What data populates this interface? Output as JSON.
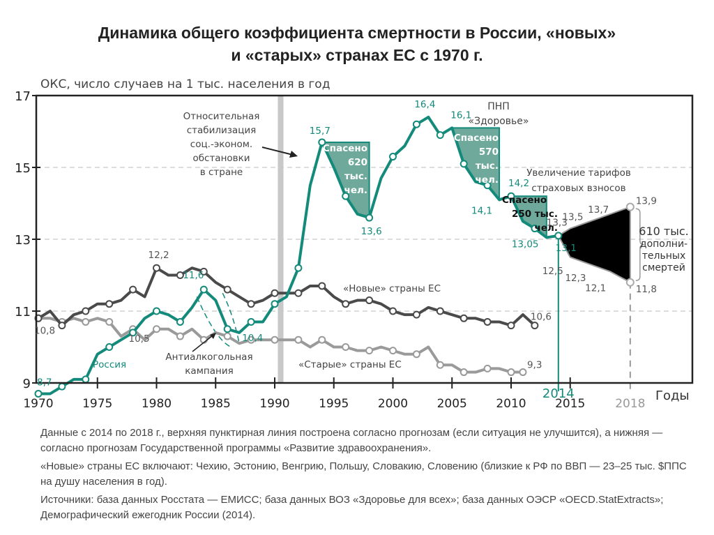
{
  "title": {
    "line1": "Динамика общего коэффициента смертности в России, «новых»",
    "line2": "и «старых» странах ЕС с 1970 г."
  },
  "colors": {
    "russia": "#138a7a",
    "new_eu": "#4a4a4a",
    "old_eu": "#9a9a9a",
    "saved_fill": "#6fa99b",
    "forecast_fill": "#000000"
  },
  "chart_data": {
    "type": "line",
    "ylabel": "ОКС, число случаев на 1 тыс. населения в год",
    "xlabel": "Годы",
    "ylim": [
      9,
      17
    ],
    "xlim": [
      1970,
      2018
    ],
    "yticks": [
      "17",
      "15",
      "13",
      "11",
      "9"
    ],
    "ytick_values": [
      17,
      15,
      13,
      11,
      9
    ],
    "xticks": [
      "1970",
      "1975",
      "1980",
      "1985",
      "1990",
      "1995",
      "2000",
      "2005",
      "2010",
      "2015",
      "2018"
    ],
    "xtick_values": [
      1970,
      1975,
      1980,
      1985,
      1990,
      1995,
      2000,
      2005,
      2010,
      2015,
      2018
    ],
    "grid": "dashed horizontal at 11, 13, 15",
    "marker_2014": "2014",
    "series": [
      {
        "name": "Россия",
        "x": [
          1970,
          1971,
          1972,
          1973,
          1974,
          1975,
          1976,
          1977,
          1978,
          1979,
          1980,
          1981,
          1982,
          1983,
          1984,
          1985,
          1986,
          1987,
          1988,
          1989,
          1990,
          1991,
          1992,
          1993,
          1994,
          1995,
          1996,
          1997,
          1998,
          1999,
          2000,
          2001,
          2002,
          2003,
          2004,
          2005,
          2006,
          2007,
          2008,
          2009,
          2010,
          2011,
          2012,
          2013,
          2014
        ],
        "values": [
          8.7,
          8.7,
          8.9,
          9.1,
          9.1,
          9.8,
          10.0,
          10.2,
          10.4,
          10.8,
          11.0,
          10.9,
          10.7,
          11.1,
          11.6,
          11.3,
          10.5,
          10.4,
          10.7,
          10.7,
          11.2,
          11.4,
          12.2,
          14.5,
          15.7,
          15.0,
          14.2,
          13.7,
          13.6,
          14.7,
          15.3,
          15.6,
          16.2,
          16.4,
          15.9,
          16.1,
          15.1,
          14.6,
          14.5,
          14.1,
          14.2,
          13.5,
          13.3,
          13.05,
          13.1
        ]
      },
      {
        "name": "«Новые» страны ЕС",
        "x": [
          1970,
          1971,
          1972,
          1973,
          1974,
          1975,
          1976,
          1977,
          1978,
          1979,
          1980,
          1981,
          1982,
          1983,
          1984,
          1985,
          1986,
          1987,
          1988,
          1989,
          1990,
          1991,
          1992,
          1993,
          1994,
          1995,
          1996,
          1997,
          1998,
          1999,
          2000,
          2001,
          2002,
          2003,
          2004,
          2005,
          2006,
          2007,
          2008,
          2009,
          2010,
          2011,
          2012
        ],
        "values": [
          10.8,
          11.0,
          10.6,
          10.9,
          11.0,
          11.2,
          11.2,
          11.3,
          11.6,
          11.4,
          12.2,
          12.0,
          12.0,
          12.2,
          12.1,
          11.8,
          11.6,
          11.4,
          11.2,
          11.3,
          11.5,
          11.5,
          11.5,
          11.7,
          11.7,
          11.4,
          11.2,
          11.3,
          11.3,
          11.2,
          11.0,
          10.9,
          10.9,
          11.1,
          11.0,
          10.9,
          10.8,
          10.8,
          10.7,
          10.7,
          10.6,
          10.9,
          10.6
        ]
      },
      {
        "name": "«Старые» страны ЕС",
        "x": [
          1970,
          1971,
          1972,
          1973,
          1974,
          1975,
          1976,
          1977,
          1978,
          1979,
          1980,
          1981,
          1982,
          1983,
          1984,
          1985,
          1986,
          1987,
          1988,
          1989,
          1990,
          1991,
          1992,
          1993,
          1994,
          1995,
          1996,
          1997,
          1998,
          1999,
          2000,
          2001,
          2002,
          2003,
          2004,
          2005,
          2006,
          2007,
          2008,
          2009,
          2010,
          2011
        ],
        "values": [
          10.8,
          10.8,
          10.7,
          10.8,
          10.7,
          10.8,
          10.7,
          10.3,
          10.5,
          10.2,
          10.5,
          10.5,
          10.3,
          10.5,
          10.2,
          10.4,
          10.3,
          10.1,
          10.2,
          10.2,
          10.2,
          10.2,
          10.2,
          10.0,
          10.2,
          10.0,
          10.0,
          9.9,
          9.9,
          10.0,
          9.9,
          9.8,
          9.8,
          10.0,
          9.5,
          9.5,
          9.3,
          9.3,
          9.4,
          9.4,
          9.3,
          9.3
        ]
      },
      {
        "name": "Прогноз (верхний)",
        "x": [
          2014,
          2015,
          2016,
          2017,
          2018
        ],
        "values": [
          13.1,
          13.3,
          13.5,
          13.7,
          13.9
        ]
      },
      {
        "name": "Прогноз (нижний)",
        "x": [
          2014,
          2015,
          2016,
          2017,
          2018
        ],
        "values": [
          13.1,
          12.5,
          12.3,
          12.1,
          11.8
        ]
      }
    ],
    "point_labels": [
      {
        "text": "8,7",
        "series": "russia",
        "x": 1970,
        "y": 8.7
      },
      {
        "text": "11,6",
        "series": "russia",
        "x": 1984,
        "y": 11.6
      },
      {
        "text": "10,4",
        "series": "russia",
        "x": 1987,
        "y": 10.4
      },
      {
        "text": "15,7",
        "series": "russia",
        "x": 1994,
        "y": 15.7
      },
      {
        "text": "13,6",
        "series": "russia",
        "x": 1998,
        "y": 13.6
      },
      {
        "text": "16,4",
        "series": "russia",
        "x": 2003,
        "y": 16.4
      },
      {
        "text": "16,1",
        "series": "russia",
        "x": 2005,
        "y": 16.1
      },
      {
        "text": "14,1",
        "series": "russia",
        "x": 2009,
        "y": 14.1
      },
      {
        "text": "14,2",
        "series": "russia",
        "x": 2010,
        "y": 14.2
      },
      {
        "text": "13,05",
        "series": "russia",
        "x": 2013,
        "y": 13.05
      },
      {
        "text": "13,1",
        "series": "russia",
        "x": 2014,
        "y": 13.1
      },
      {
        "text": "10,8",
        "series": "grey",
        "x": 1970,
        "y": 10.8
      },
      {
        "text": "12,2",
        "series": "grey",
        "x": 1980,
        "y": 12.2
      },
      {
        "text": "10,5",
        "series": "grey",
        "x": 1980,
        "y": 10.5
      },
      {
        "text": "10,6",
        "series": "grey",
        "x": 2012,
        "y": 10.6
      },
      {
        "text": "9,3",
        "series": "grey",
        "x": 2011,
        "y": 9.3
      },
      {
        "text": "13,3",
        "series": "grey",
        "x": 2015,
        "y": 13.3
      },
      {
        "text": "13,5",
        "series": "grey",
        "x": 2016,
        "y": 13.5
      },
      {
        "text": "13,7",
        "series": "grey",
        "x": 2017,
        "y": 13.7
      },
      {
        "text": "13,9",
        "series": "grey",
        "x": 2018,
        "y": 13.9
      },
      {
        "text": "12,5",
        "series": "grey",
        "x": 2015,
        "y": 12.5
      },
      {
        "text": "12,3",
        "series": "grey",
        "x": 2016,
        "y": 12.3
      },
      {
        "text": "12,1",
        "series": "grey",
        "x": 2017,
        "y": 12.1
      },
      {
        "text": "11,8",
        "series": "grey",
        "x": 2018,
        "y": 11.8
      }
    ],
    "annotations": {
      "stabilization": [
        "Относительная",
        "стабилизация",
        "соц.-эконом.",
        "обстановки",
        "в стране"
      ],
      "pnp": [
        "ПНП",
        "«Здоровье»"
      ],
      "tariffs": [
        "Увеличение тарифов",
        "страховых взносов"
      ],
      "new_eu_label": "«Новые» страны ЕС",
      "old_eu_label": "«Старые» страны ЕС",
      "russia_label": "Россия",
      "antialcohol": [
        "Антиалкогольная",
        "кампания"
      ],
      "saved1": [
        "Спасено",
        "620",
        "тыс.",
        "чел."
      ],
      "saved2": [
        "Спасено",
        "570",
        "тыс.",
        "чел."
      ],
      "saved3": [
        "Спасено",
        "250 тыс.",
        "чел."
      ],
      "extra_deaths": [
        "610 тыс.",
        "дополни-",
        "тельных",
        "смертей"
      ]
    }
  },
  "notes": [
    "Данные с 2014 по 2018 г., верхняя пунктирная линия построена согласно прогнозам (если ситуация не улучшится), а нижняя — согласно прогнозам Государственной программы «Развитие здравоохранения».",
    "«Новые» страны ЕС включают: Чехию, Эстонию, Венгрию, Польшу, Словакию, Словению (близкие к РФ по ВВП — 23–25 тыс. $ППС на душу населения в год).",
    "Источники: база данных Росстата — ЕМИСС; база данных ВОЗ «Здоровье для всех»; база данных ОЭСР «OECD.StatExtracts»; Демографический ежегодник России (2014)."
  ]
}
